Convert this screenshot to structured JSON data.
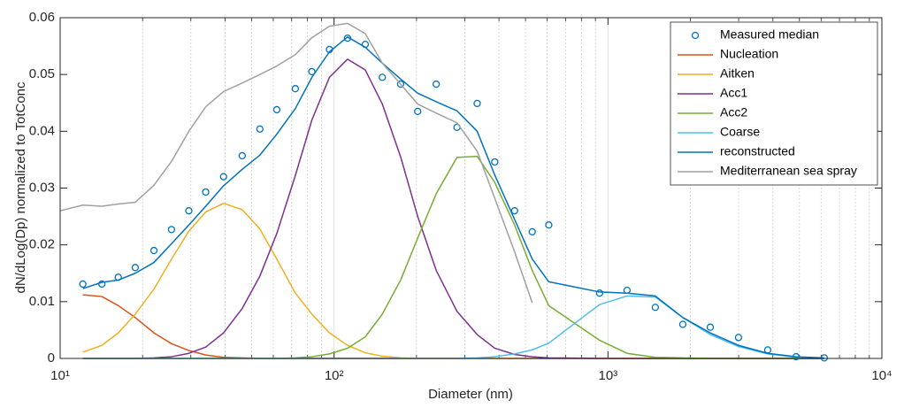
{
  "chart_data": {
    "type": "line",
    "xlabel": "Diameter (nm)",
    "ylabel": "dN/dLog(Dp) normalized to TotConc",
    "xscale": "log",
    "xlim": [
      10,
      10000
    ],
    "xticks": [
      {
        "value": 10,
        "label": "10¹"
      },
      {
        "value": 100,
        "label": "10²"
      },
      {
        "value": 1000,
        "label": "10³"
      },
      {
        "value": 10000,
        "label": "10⁴"
      }
    ],
    "ylim": [
      0,
      0.06
    ],
    "yticks": [
      0,
      0.01,
      0.02,
      0.03,
      0.04,
      0.05,
      0.06
    ],
    "x_grid": true,
    "x_minor_grid": true,
    "legend": "upper right",
    "series": [
      {
        "name": "Measured median",
        "color": "#0072bd",
        "style": "marker",
        "x": [
          12.1,
          14.2,
          16.3,
          18.8,
          22,
          25.5,
          29.5,
          34,
          39.5,
          46.2,
          53.6,
          61.8,
          72.2,
          83,
          96.2,
          112,
          130,
          150,
          175,
          202,
          236,
          281,
          333,
          386,
          456,
          529,
          608,
          932,
          1174,
          1489,
          1876,
          2363,
          2996,
          3830,
          4860,
          6163
        ],
        "values": [
          0.0131,
          0.0131,
          0.0143,
          0.016,
          0.019,
          0.0227,
          0.026,
          0.0293,
          0.032,
          0.0357,
          0.0404,
          0.0438,
          0.0475,
          0.0505,
          0.0544,
          0.0564,
          0.0553,
          0.0495,
          0.0483,
          0.0435,
          0.0483,
          0.0407,
          0.0449,
          0.0346,
          0.026,
          0.0223,
          0.0235,
          0.0115,
          0.012,
          0.009,
          0.006,
          0.0055,
          0.0037,
          0.0015,
          0.0003,
          0.0001
        ]
      },
      {
        "name": "Nucleation",
        "color": "#d95319",
        "style": "line",
        "x": [
          12.1,
          14.2,
          16.3,
          18.8,
          22,
          25.5,
          29.5,
          34,
          39.5,
          46.2,
          53.6,
          61.8,
          72.2,
          83,
          96.2,
          112,
          130,
          150,
          175,
          202,
          236,
          281,
          333,
          386,
          456,
          529,
          608,
          932,
          1174,
          1489,
          1876,
          2363,
          2996,
          3830,
          4860,
          6163
        ],
        "values": [
          0.0112,
          0.0109,
          0.0093,
          0.0072,
          0.0045,
          0.0026,
          0.0014,
          0.0006,
          0.0002,
          0.0001,
          0,
          0,
          0,
          0,
          0,
          0,
          0,
          0,
          0,
          0,
          0,
          0,
          0,
          0,
          0,
          0,
          0,
          0,
          0,
          0,
          0,
          0,
          0,
          0,
          0,
          0
        ]
      },
      {
        "name": "Aitken",
        "color": "#edb120",
        "style": "line",
        "x": [
          12.1,
          14.2,
          16.3,
          18.8,
          22,
          25.5,
          29.5,
          34,
          39.5,
          46.2,
          53.6,
          61.8,
          72.2,
          83,
          96.2,
          112,
          130,
          150,
          175,
          202,
          236,
          281,
          333,
          386,
          456,
          529,
          608,
          932,
          1174,
          1489,
          1876,
          2363,
          2996,
          3830,
          4860,
          6163
        ],
        "values": [
          0.0011,
          0.0023,
          0.0045,
          0.0078,
          0.0122,
          0.0175,
          0.0224,
          0.0258,
          0.0273,
          0.0262,
          0.0228,
          0.0175,
          0.0115,
          0.0078,
          0.0045,
          0.0023,
          0.001,
          0.0004,
          0.0001,
          0,
          0,
          0,
          0,
          0,
          0,
          0,
          0,
          0,
          0,
          0,
          0,
          0,
          0,
          0,
          0,
          0
        ]
      },
      {
        "name": "Acc1",
        "color": "#7e2f8e",
        "style": "line",
        "x": [
          12.1,
          14.2,
          16.3,
          18.8,
          22,
          25.5,
          29.5,
          34,
          39.5,
          46.2,
          53.6,
          61.8,
          72.2,
          83,
          96.2,
          112,
          130,
          150,
          175,
          202,
          236,
          281,
          333,
          386,
          456,
          529,
          608,
          932,
          1174,
          1489,
          1876,
          2363,
          2996,
          3830,
          4860,
          6163
        ],
        "values": [
          0,
          0,
          0,
          0,
          0.0001,
          0.0003,
          0.0009,
          0.002,
          0.0045,
          0.0088,
          0.0145,
          0.022,
          0.0322,
          0.042,
          0.0495,
          0.0527,
          0.0508,
          0.0448,
          0.0355,
          0.025,
          0.0155,
          0.0083,
          0.0042,
          0.0018,
          0.0007,
          0.0003,
          0.0001,
          0,
          0,
          0,
          0,
          0,
          0,
          0,
          0,
          0
        ]
      },
      {
        "name": "Acc2",
        "color": "#77ac30",
        "style": "line",
        "x": [
          12.1,
          14.2,
          16.3,
          18.8,
          22,
          25.5,
          29.5,
          34,
          39.5,
          46.2,
          53.6,
          61.8,
          72.2,
          83,
          96.2,
          112,
          130,
          150,
          175,
          202,
          236,
          281,
          333,
          386,
          456,
          529,
          608,
          932,
          1174,
          1489,
          1876,
          2363,
          2996,
          3830,
          4860,
          6163
        ],
        "values": [
          0,
          0,
          0,
          0,
          0,
          0,
          0,
          0,
          0,
          0,
          0,
          0,
          0.0001,
          0.0003,
          0.0008,
          0.0018,
          0.0038,
          0.0078,
          0.0138,
          0.0212,
          0.029,
          0.0354,
          0.0356,
          0.031,
          0.0235,
          0.0155,
          0.0093,
          0.0032,
          0.0009,
          0.0002,
          0.0001,
          0,
          0,
          0,
          0,
          0
        ]
      },
      {
        "name": "Coarse",
        "color": "#4dbeee",
        "style": "line",
        "x": [
          12.1,
          14.2,
          16.3,
          18.8,
          22,
          25.5,
          29.5,
          34,
          39.5,
          46.2,
          53.6,
          61.8,
          72.2,
          83,
          96.2,
          112,
          130,
          150,
          175,
          202,
          236,
          281,
          333,
          386,
          456,
          529,
          608,
          932,
          1174,
          1489,
          1876,
          2363,
          2996,
          3830,
          4860,
          6163
        ],
        "values": [
          0,
          0,
          0,
          0,
          0,
          0,
          0,
          0,
          0,
          0,
          0,
          0,
          0,
          0,
          0,
          0,
          0,
          0,
          0,
          0,
          0,
          0,
          0.0001,
          0.0003,
          0.0008,
          0.0015,
          0.0027,
          0.0095,
          0.011,
          0.0108,
          0.0072,
          0.0042,
          0.0021,
          0.0008,
          0.0002,
          0
        ]
      },
      {
        "name": "reconstructed",
        "color": "#0072bd",
        "style": "line",
        "x": [
          12.1,
          14.2,
          16.3,
          18.8,
          22,
          25.5,
          29.5,
          34,
          39.5,
          46.2,
          53.6,
          61.8,
          72.2,
          83,
          96.2,
          112,
          130,
          150,
          175,
          202,
          236,
          281,
          333,
          386,
          456,
          529,
          608,
          932,
          1174,
          1489,
          1876,
          2363,
          2996,
          3830,
          4860,
          6163
        ],
        "values": [
          0.0123,
          0.0134,
          0.0138,
          0.015,
          0.0169,
          0.0202,
          0.0235,
          0.0268,
          0.0304,
          0.0333,
          0.0358,
          0.0395,
          0.044,
          0.0495,
          0.054,
          0.0566,
          0.0548,
          0.052,
          0.0492,
          0.0467,
          0.0452,
          0.0436,
          0.04,
          0.0323,
          0.0245,
          0.0175,
          0.0135,
          0.0117,
          0.0115,
          0.011,
          0.0072,
          0.0045,
          0.0023,
          0.0009,
          0.0003,
          0.0001
        ]
      },
      {
        "name": "Mediterranean sea spray",
        "color": "#a0a0a0",
        "style": "line",
        "x": [
          10,
          12.1,
          14.2,
          16.3,
          18.8,
          22,
          25.5,
          29.5,
          34,
          39.5,
          46.2,
          53.6,
          61.8,
          72.2,
          83,
          96.2,
          112,
          130,
          150,
          175,
          202,
          236,
          281,
          333,
          386,
          456,
          529
        ],
        "values": [
          0.026,
          0.027,
          0.0268,
          0.0272,
          0.0275,
          0.0305,
          0.0347,
          0.04,
          0.0443,
          0.047,
          0.0485,
          0.05,
          0.0515,
          0.0535,
          0.0565,
          0.0585,
          0.059,
          0.0572,
          0.052,
          0.0483,
          0.0448,
          0.0432,
          0.0415,
          0.0365,
          0.0282,
          0.0188,
          0.0098
        ]
      }
    ]
  }
}
